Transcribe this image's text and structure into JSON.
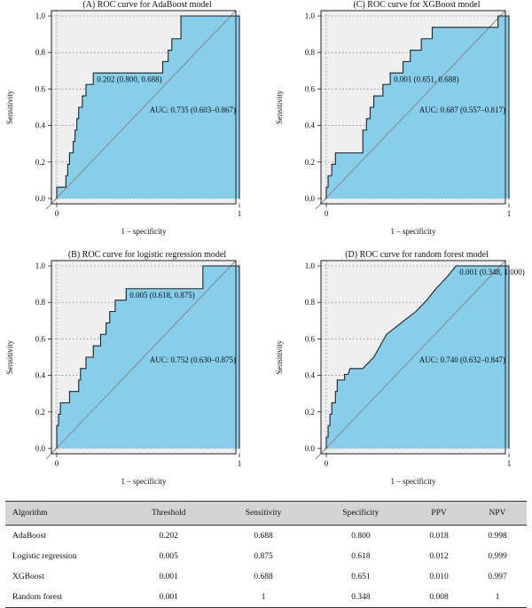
{
  "chart_data": [
    {
      "type": "line",
      "title": "(A) ROC curve for AdaBoost model",
      "xlabel": "1 – specificity",
      "ylabel": "Sensitivity",
      "xlim": [
        0,
        1
      ],
      "ylim": [
        0,
        1
      ],
      "x_ticks": [
        "0",
        "1"
      ],
      "y_ticks": [
        "0.0",
        "0.2",
        "0.4",
        "0.6",
        "0.8",
        "1.0"
      ],
      "grid": true,
      "curve": [
        [
          0,
          0
        ],
        [
          0,
          0.062
        ],
        [
          0.05,
          0.062
        ],
        [
          0.05,
          0.125
        ],
        [
          0.06,
          0.125
        ],
        [
          0.06,
          0.188
        ],
        [
          0.07,
          0.188
        ],
        [
          0.07,
          0.25
        ],
        [
          0.09,
          0.25
        ],
        [
          0.09,
          0.312
        ],
        [
          0.1,
          0.312
        ],
        [
          0.1,
          0.375
        ],
        [
          0.11,
          0.375
        ],
        [
          0.11,
          0.438
        ],
        [
          0.12,
          0.438
        ],
        [
          0.12,
          0.5
        ],
        [
          0.14,
          0.5
        ],
        [
          0.14,
          0.562
        ],
        [
          0.16,
          0.562
        ],
        [
          0.16,
          0.625
        ],
        [
          0.2,
          0.625
        ],
        [
          0.2,
          0.688
        ],
        [
          0.58,
          0.688
        ],
        [
          0.58,
          0.75
        ],
        [
          0.61,
          0.75
        ],
        [
          0.61,
          0.812
        ],
        [
          0.63,
          0.812
        ],
        [
          0.63,
          0.875
        ],
        [
          0.68,
          0.875
        ],
        [
          0.68,
          1
        ],
        [
          1,
          1
        ]
      ],
      "cutoff_label": "0.202 (0.800, 0.688)",
      "cutoff_point": [
        0.2,
        0.688
      ],
      "auc_label": "AUC: 0.735 (0.603–0.867)"
    },
    {
      "type": "line",
      "title": "(C) ROC curve for XGBoost model",
      "xlabel": "1 – specificity",
      "ylabel": "Sensitivity",
      "xlim": [
        0,
        1
      ],
      "ylim": [
        0,
        1
      ],
      "x_ticks": [
        "0",
        "1"
      ],
      "y_ticks": [
        "0.0",
        "0.2",
        "0.4",
        "0.6",
        "0.8",
        "1.0"
      ],
      "grid": true,
      "curve": [
        [
          0,
          0
        ],
        [
          0,
          0.062
        ],
        [
          0.01,
          0.062
        ],
        [
          0.01,
          0.125
        ],
        [
          0.03,
          0.125
        ],
        [
          0.03,
          0.188
        ],
        [
          0.05,
          0.188
        ],
        [
          0.05,
          0.25
        ],
        [
          0.2,
          0.25
        ],
        [
          0.2,
          0.375
        ],
        [
          0.22,
          0.375
        ],
        [
          0.22,
          0.438
        ],
        [
          0.24,
          0.438
        ],
        [
          0.24,
          0.5
        ],
        [
          0.26,
          0.5
        ],
        [
          0.26,
          0.562
        ],
        [
          0.31,
          0.562
        ],
        [
          0.31,
          0.625
        ],
        [
          0.35,
          0.625
        ],
        [
          0.35,
          0.688
        ],
        [
          0.42,
          0.688
        ],
        [
          0.42,
          0.75
        ],
        [
          0.46,
          0.75
        ],
        [
          0.46,
          0.812
        ],
        [
          0.52,
          0.812
        ],
        [
          0.52,
          0.875
        ],
        [
          0.58,
          0.875
        ],
        [
          0.58,
          0.938
        ],
        [
          0.94,
          0.938
        ],
        [
          0.94,
          1
        ],
        [
          1,
          1
        ]
      ],
      "cutoff_label": "0.001 (0.651, 0.688)",
      "cutoff_point": [
        0.35,
        0.688
      ],
      "auc_label": "AUC: 0.687 (0.557–0.817)"
    },
    {
      "type": "line",
      "title": "(B) ROC curve for logistic regression model",
      "xlabel": "1 – specificity",
      "ylabel": "Sensitivity",
      "xlim": [
        0,
        1
      ],
      "ylim": [
        0,
        1
      ],
      "x_ticks": [
        "0",
        "1"
      ],
      "y_ticks": [
        "0.0",
        "0.2",
        "0.4",
        "0.6",
        "0.8",
        "1.0"
      ],
      "grid": true,
      "curve": [
        [
          0,
          0
        ],
        [
          0,
          0.125
        ],
        [
          0.01,
          0.125
        ],
        [
          0.01,
          0.188
        ],
        [
          0.02,
          0.188
        ],
        [
          0.02,
          0.25
        ],
        [
          0.07,
          0.25
        ],
        [
          0.07,
          0.312
        ],
        [
          0.12,
          0.312
        ],
        [
          0.12,
          0.375
        ],
        [
          0.13,
          0.375
        ],
        [
          0.13,
          0.438
        ],
        [
          0.16,
          0.438
        ],
        [
          0.16,
          0.5
        ],
        [
          0.2,
          0.5
        ],
        [
          0.2,
          0.562
        ],
        [
          0.24,
          0.562
        ],
        [
          0.24,
          0.625
        ],
        [
          0.27,
          0.625
        ],
        [
          0.27,
          0.688
        ],
        [
          0.29,
          0.688
        ],
        [
          0.29,
          0.75
        ],
        [
          0.32,
          0.75
        ],
        [
          0.32,
          0.812
        ],
        [
          0.38,
          0.812
        ],
        [
          0.38,
          0.875
        ],
        [
          0.8,
          0.875
        ],
        [
          0.8,
          1
        ],
        [
          1,
          1
        ]
      ],
      "cutoff_label": "0.005 (0.618, 0.875)",
      "cutoff_point": [
        0.38,
        0.875
      ],
      "auc_label": "AUC: 0.752 (0.630–0.875)"
    },
    {
      "type": "line",
      "title": "(D) ROC curve for random forest model",
      "xlabel": "1 – specificity",
      "ylabel": "Sensitivity",
      "xlim": [
        0,
        1
      ],
      "ylim": [
        0,
        1
      ],
      "x_ticks": [
        "0",
        "1"
      ],
      "y_ticks": [
        "0.0",
        "0.2",
        "0.4",
        "0.6",
        "0.8",
        "1.0"
      ],
      "grid": true,
      "curve": [
        [
          0,
          0
        ],
        [
          0,
          0.062
        ],
        [
          0.01,
          0.062
        ],
        [
          0.01,
          0.125
        ],
        [
          0.02,
          0.125
        ],
        [
          0.02,
          0.188
        ],
        [
          0.03,
          0.188
        ],
        [
          0.03,
          0.25
        ],
        [
          0.05,
          0.25
        ],
        [
          0.05,
          0.312
        ],
        [
          0.06,
          0.312
        ],
        [
          0.06,
          0.375
        ],
        [
          0.1,
          0.375
        ],
        [
          0.1,
          0.406
        ],
        [
          0.12,
          0.406
        ],
        [
          0.13,
          0.438
        ],
        [
          0.2,
          0.438
        ],
        [
          0.26,
          0.5
        ],
        [
          0.33,
          0.625
        ],
        [
          0.41,
          0.688
        ],
        [
          0.49,
          0.75
        ],
        [
          0.55,
          0.812
        ],
        [
          0.6,
          0.875
        ],
        [
          0.66,
          0.938
        ],
        [
          0.71,
          1
        ],
        [
          1,
          1
        ]
      ],
      "cutoff_label": "0.001 (0.348, 1.000)",
      "cutoff_point": [
        0.71,
        1
      ],
      "auc_label": "AUC: 0.740 (0.632–0.847)"
    }
  ],
  "colors": {
    "auc_fill": "#87ceeb",
    "upper_fill": "#efefef",
    "diagonal": "#888888",
    "curve": "#222222",
    "grid": "#666666"
  },
  "table": {
    "headers": [
      "Algorithm",
      "Threshold",
      "Sensitivity",
      "Specificity",
      "PPV",
      "NPV"
    ],
    "rows": [
      [
        "AdaBoost",
        "0.202",
        "0.688",
        "0.800",
        "0.018",
        "0.998"
      ],
      [
        "Logistic regression",
        "0.005",
        "0.875",
        "0.618",
        "0.012",
        "0.999"
      ],
      [
        "XGBoost",
        "0.001",
        "0.688",
        "0.651",
        "0.010",
        "0.997"
      ],
      [
        "Random forest",
        "0.001",
        "1",
        "0.348",
        "0.008",
        "1"
      ]
    ]
  }
}
